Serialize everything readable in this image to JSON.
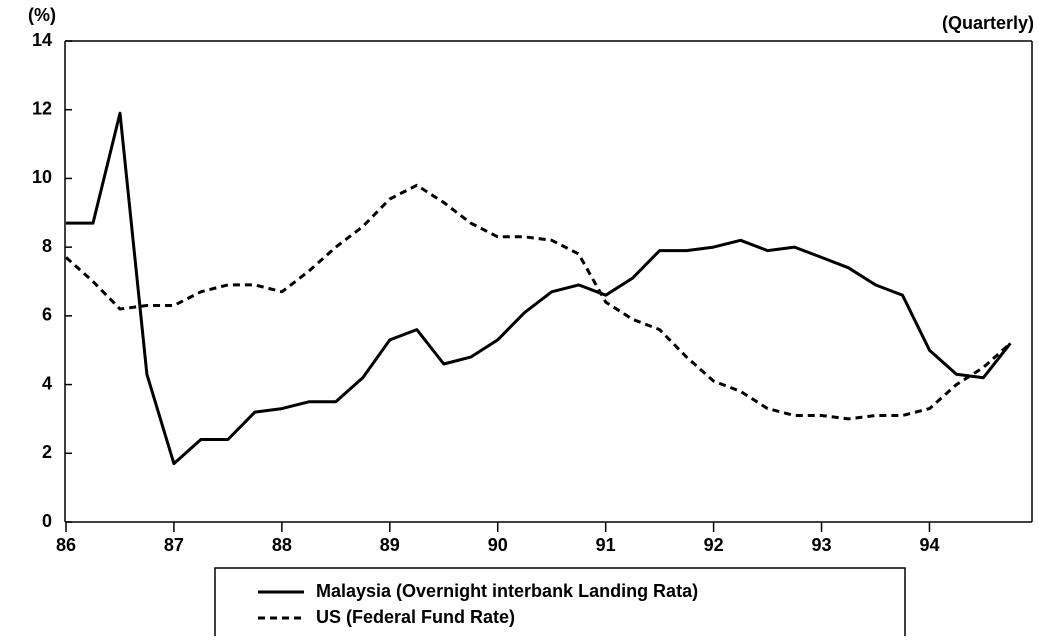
{
  "chart_data": {
    "type": "line",
    "y_label": "(%)",
    "annotation": "(Quarterly)",
    "x": [
      86,
      86.25,
      86.5,
      86.75,
      87,
      87.25,
      87.5,
      87.75,
      88,
      88.25,
      88.5,
      88.75,
      89,
      89.25,
      89.5,
      89.75,
      90,
      90.25,
      90.5,
      90.75,
      91,
      91.25,
      91.5,
      91.75,
      92,
      92.25,
      92.5,
      92.75,
      93,
      93.25,
      93.5,
      93.75,
      94,
      94.25,
      94.5,
      94.75
    ],
    "series": [
      {
        "name": "Malaysia (Overnight interbank Landing Rata)",
        "color": "#000000",
        "dash": "solid",
        "values": [
          8.7,
          8.7,
          11.9,
          4.3,
          1.7,
          2.4,
          2.4,
          3.2,
          3.3,
          3.5,
          3.5,
          4.2,
          5.3,
          5.6,
          4.6,
          4.8,
          5.3,
          6.1,
          6.7,
          6.9,
          6.6,
          7.1,
          7.9,
          7.9,
          8.0,
          8.2,
          7.9,
          8.0,
          7.7,
          7.4,
          6.9,
          6.6,
          5.0,
          4.3,
          4.2,
          5.2
        ]
      },
      {
        "name": "US (Federal Fund Rate)",
        "color": "#000000",
        "dash": "dashed",
        "values": [
          7.7,
          7.0,
          6.2,
          6.3,
          6.3,
          6.7,
          6.9,
          6.9,
          6.7,
          7.3,
          8.0,
          8.6,
          9.4,
          9.8,
          9.3,
          8.7,
          8.3,
          8.3,
          8.2,
          7.8,
          6.4,
          5.9,
          5.6,
          4.8,
          4.1,
          3.8,
          3.3,
          3.1,
          3.1,
          3.0,
          3.1,
          3.1,
          3.3,
          4.0,
          4.5,
          5.2
        ]
      }
    ],
    "xlim": [
      86,
      94.95
    ],
    "xticks": [
      86,
      87,
      88,
      89,
      90,
      91,
      92,
      93,
      94
    ],
    "ylim": [
      0,
      14
    ],
    "yticks": [
      0,
      2,
      4,
      6,
      8,
      10,
      12,
      14
    ]
  }
}
